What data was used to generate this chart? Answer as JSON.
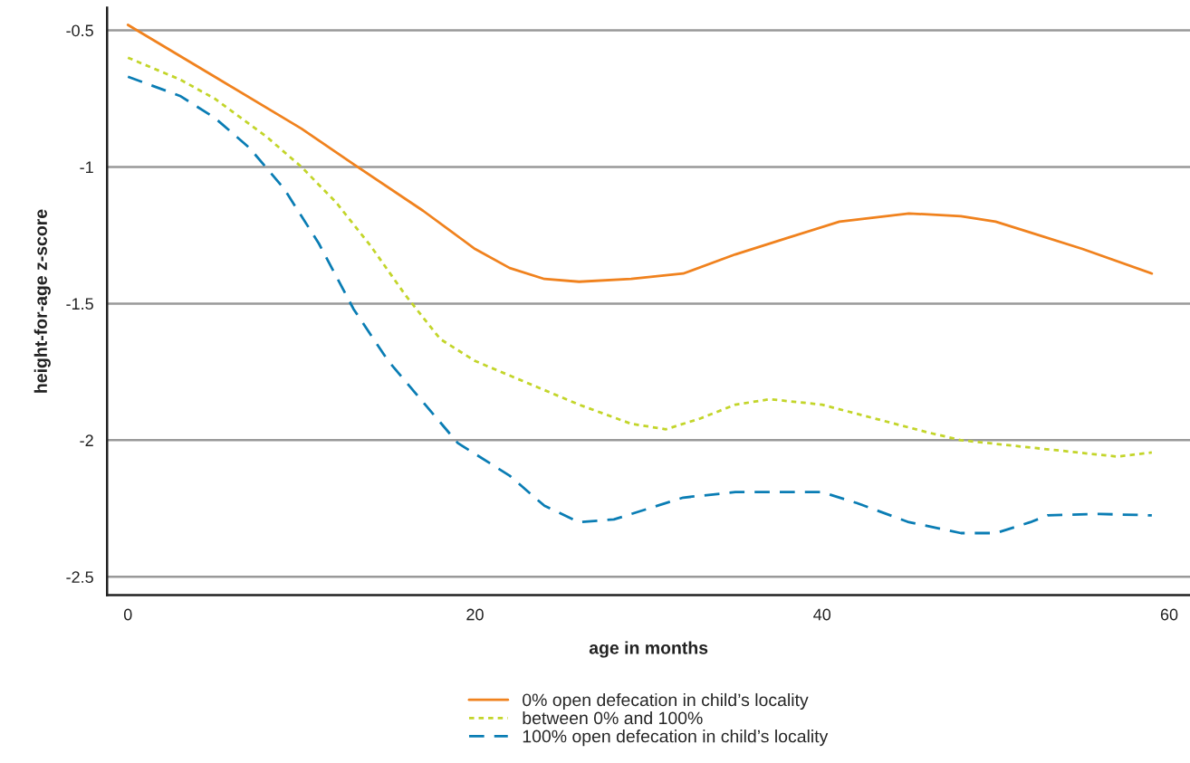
{
  "chart_data": {
    "type": "line",
    "xlabel": "age in months",
    "ylabel": "height-for-age z-score",
    "xlim": [
      -1.2,
      61.2
    ],
    "ylim": [
      -2.567,
      -0.417
    ],
    "xticks": [
      0,
      20,
      40,
      60
    ],
    "yticks": [
      -0.5,
      -1,
      -1.5,
      -2,
      -2.5
    ],
    "grid": "y",
    "legend": "bottom",
    "marker": "none",
    "series": [
      {
        "name": "0% open defecation in child’s locality",
        "color": "#f0821e",
        "line_style": "solid",
        "x": [
          0,
          5,
          10,
          13,
          17,
          20,
          22,
          24,
          26,
          29,
          32,
          35,
          38,
          41,
          45,
          48,
          50,
          52,
          55,
          59
        ],
        "values": [
          -0.48,
          -0.67,
          -0.86,
          -0.99,
          -1.16,
          -1.3,
          -1.37,
          -1.41,
          -1.42,
          -1.41,
          -1.39,
          -1.32,
          -1.26,
          -1.2,
          -1.17,
          -1.18,
          -1.2,
          -1.24,
          -1.3,
          -1.39
        ]
      },
      {
        "name": "between 0% and 100%",
        "color": "#c3d52a",
        "line_style": "dotted",
        "x": [
          0,
          3,
          5,
          8,
          10,
          12,
          14,
          16,
          18,
          20,
          23,
          26,
          29,
          31,
          33,
          35,
          37,
          40,
          43,
          46,
          48,
          51,
          54,
          57,
          59
        ],
        "values": [
          -0.6,
          -0.68,
          -0.75,
          -0.89,
          -1.0,
          -1.13,
          -1.29,
          -1.47,
          -1.63,
          -1.71,
          -1.79,
          -1.87,
          -1.94,
          -1.96,
          -1.92,
          -1.87,
          -1.85,
          -1.87,
          -1.92,
          -1.97,
          -2.0,
          -2.02,
          -2.04,
          -2.06,
          -2.045
        ]
      },
      {
        "name": "100% open defecation in child’s locality",
        "color": "#0a7db4",
        "line_style": "dashed",
        "x": [
          0,
          3,
          5,
          7,
          9,
          11,
          13,
          15,
          17,
          19,
          21,
          22,
          24,
          26,
          28,
          30,
          32,
          35,
          38,
          40,
          42,
          45,
          48,
          50,
          52,
          53,
          56,
          59
        ],
        "values": [
          -0.67,
          -0.74,
          -0.82,
          -0.93,
          -1.08,
          -1.28,
          -1.52,
          -1.71,
          -1.86,
          -2.01,
          -2.09,
          -2.13,
          -2.24,
          -2.3,
          -2.29,
          -2.25,
          -2.21,
          -2.19,
          -2.19,
          -2.19,
          -2.23,
          -2.3,
          -2.34,
          -2.34,
          -2.3,
          -2.275,
          -2.27,
          -2.275
        ]
      }
    ]
  }
}
